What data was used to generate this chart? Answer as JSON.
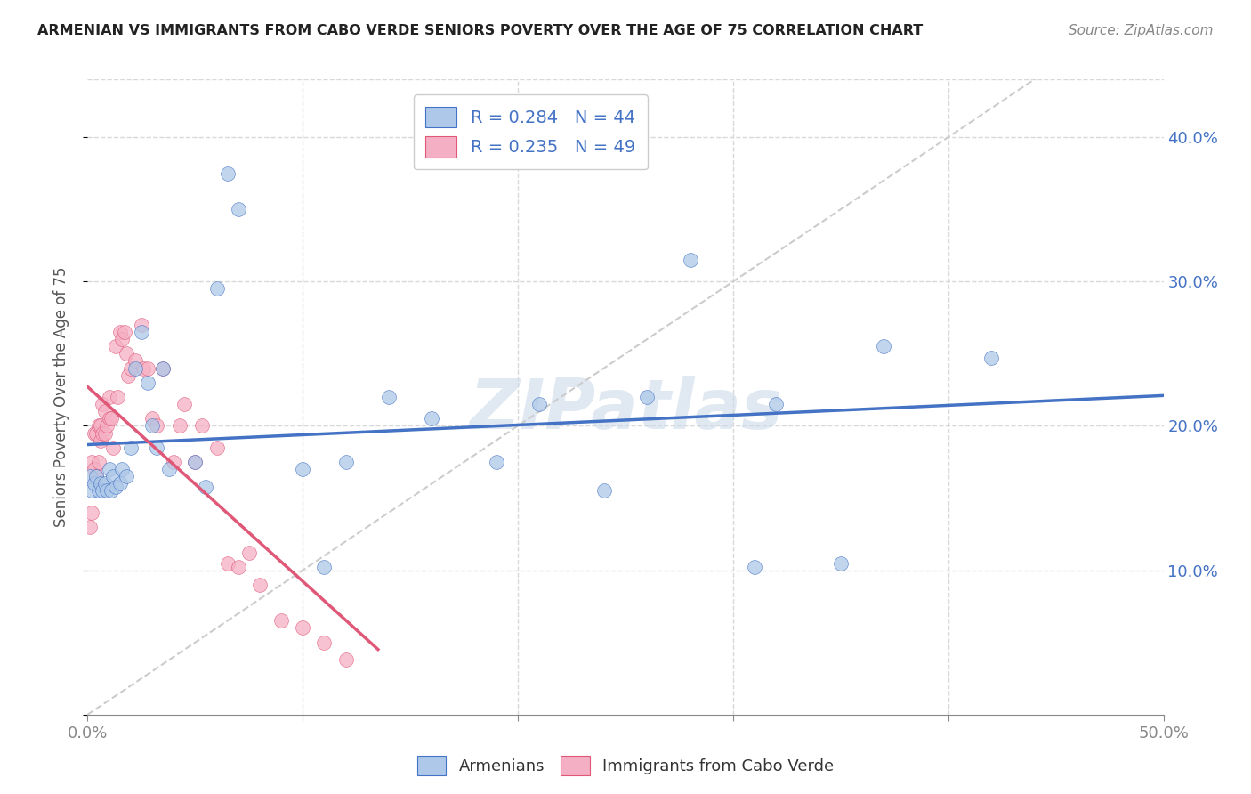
{
  "title": "ARMENIAN VS IMMIGRANTS FROM CABO VERDE SENIORS POVERTY OVER THE AGE OF 75 CORRELATION CHART",
  "source": "Source: ZipAtlas.com",
  "ylabel": "Seniors Poverty Over the Age of 75",
  "xlim": [
    0.0,
    0.5
  ],
  "ylim": [
    0.0,
    0.44
  ],
  "legend_r_armenian": "R = 0.284",
  "legend_n_armenian": "N = 44",
  "legend_r_cabo": "R = 0.235",
  "legend_n_cabo": "N = 49",
  "armenian_color": "#adc8e8",
  "cabo_color": "#f5afc4",
  "trendline_armenian_color": "#4472c4",
  "trendline_cabo_color": "#e05878",
  "diagonal_color": "#cccccc",
  "background_color": "#ffffff",
  "grid_color": "#d8d8d8",
  "armenian_x": [
    0.001,
    0.002,
    0.003,
    0.004,
    0.005,
    0.006,
    0.007,
    0.008,
    0.009,
    0.01,
    0.011,
    0.012,
    0.013,
    0.015,
    0.016,
    0.018,
    0.02,
    0.022,
    0.025,
    0.028,
    0.03,
    0.032,
    0.035,
    0.038,
    0.05,
    0.055,
    0.06,
    0.065,
    0.07,
    0.1,
    0.11,
    0.12,
    0.14,
    0.16,
    0.19,
    0.21,
    0.24,
    0.26,
    0.28,
    0.31,
    0.32,
    0.35,
    0.37,
    0.42
  ],
  "armenian_y": [
    0.165,
    0.155,
    0.16,
    0.165,
    0.155,
    0.16,
    0.155,
    0.16,
    0.155,
    0.17,
    0.155,
    0.165,
    0.158,
    0.16,
    0.17,
    0.165,
    0.185,
    0.24,
    0.265,
    0.23,
    0.2,
    0.185,
    0.24,
    0.17,
    0.175,
    0.158,
    0.295,
    0.375,
    0.35,
    0.17,
    0.102,
    0.175,
    0.22,
    0.205,
    0.175,
    0.215,
    0.155,
    0.22,
    0.315,
    0.102,
    0.215,
    0.105,
    0.255,
    0.247
  ],
  "cabo_x": [
    0.001,
    0.002,
    0.002,
    0.003,
    0.003,
    0.004,
    0.004,
    0.005,
    0.005,
    0.006,
    0.006,
    0.007,
    0.007,
    0.008,
    0.008,
    0.009,
    0.01,
    0.01,
    0.011,
    0.012,
    0.013,
    0.014,
    0.015,
    0.016,
    0.017,
    0.018,
    0.019,
    0.02,
    0.022,
    0.025,
    0.026,
    0.028,
    0.03,
    0.032,
    0.035,
    0.04,
    0.043,
    0.045,
    0.05,
    0.053,
    0.06,
    0.065,
    0.07,
    0.075,
    0.08,
    0.09,
    0.1,
    0.11,
    0.12
  ],
  "cabo_y": [
    0.13,
    0.14,
    0.175,
    0.17,
    0.195,
    0.165,
    0.195,
    0.175,
    0.2,
    0.19,
    0.2,
    0.195,
    0.215,
    0.195,
    0.21,
    0.2,
    0.205,
    0.22,
    0.205,
    0.185,
    0.255,
    0.22,
    0.265,
    0.26,
    0.265,
    0.25,
    0.235,
    0.24,
    0.245,
    0.27,
    0.24,
    0.24,
    0.205,
    0.2,
    0.24,
    0.175,
    0.2,
    0.215,
    0.175,
    0.2,
    0.185,
    0.105,
    0.102,
    0.112,
    0.09,
    0.065,
    0.06,
    0.05,
    0.038
  ]
}
